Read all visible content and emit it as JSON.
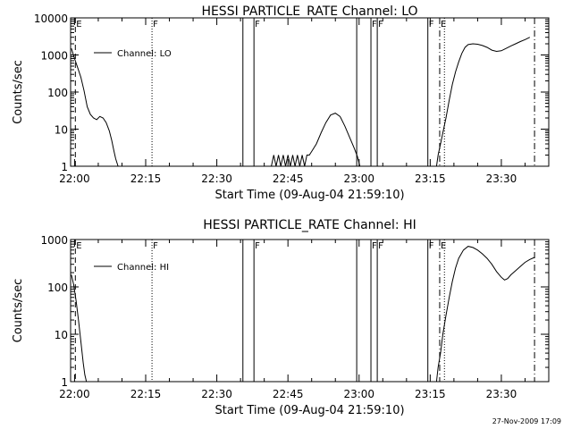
{
  "chart_data": [
    {
      "type": "line",
      "title": "HESSI PARTICLE_RATE Channel: LO",
      "xlabel": "Start Time (09-Aug-04 21:59:10)",
      "ylabel": "Counts/sec",
      "yscale": "log",
      "ylim": [
        1,
        10000
      ],
      "xlim": [
        "21:59:10",
        "23:40:00"
      ],
      "x_ticks": [
        "22:00",
        "22:15",
        "22:30",
        "22:45",
        "23:00",
        "23:15",
        "23:30"
      ],
      "y_ticks": [
        "1",
        "10",
        "100",
        "1000",
        "10000"
      ],
      "legend": {
        "placement": "top-left",
        "entries": [
          "Channel: LO"
        ]
      },
      "series": [
        {
          "name": "Channel: LO",
          "segments": [
            {
              "x": [
                "21:59:20",
                "22:00:00",
                "22:00:40",
                "22:01:20",
                "22:02:00",
                "22:02:40",
                "22:03:20",
                "22:04:00",
                "22:04:40",
                "22:05:20",
                "22:06:00",
                "22:06:40",
                "22:07:20",
                "22:07:50",
                "22:08:20",
                "22:08:40",
                "22:09:10"
              ],
              "y": [
                1500,
                800,
                450,
                250,
                110,
                40,
                25,
                20,
                18,
                22,
                20,
                15,
                9,
                5,
                2.5,
                1.6,
                1
              ]
            },
            {
              "x": [
                "22:41:30",
                "22:42:00",
                "22:42:30",
                "22:43:00",
                "22:43:30",
                "22:44:00",
                "22:44:30",
                "22:45:00",
                "22:45:30",
                "22:46:00",
                "22:46:30",
                "22:47:00",
                "22:47:30",
                "22:48:00",
                "22:48:30",
                "22:49:00",
                "22:49:30",
                "22:50:00",
                "22:51:00",
                "22:52:00",
                "22:53:00",
                "22:54:00",
                "22:55:00",
                "22:56:00",
                "22:57:00",
                "22:58:00",
                "22:59:00",
                "22:59:40",
                "23:00:10"
              ],
              "y": [
                1,
                2,
                1,
                2,
                1,
                2,
                1,
                2,
                1,
                2,
                1,
                2,
                1,
                2,
                1,
                2,
                2,
                2.5,
                4,
                8,
                15,
                24,
                27,
                22,
                12,
                6,
                3,
                1.8,
                1
              ]
            },
            {
              "x": [
                "23:16:20",
                "23:16:40",
                "23:17:10",
                "23:17:40",
                "23:18:20",
                "23:19:00",
                "23:19:40",
                "23:20:20",
                "23:21:00",
                "23:21:40",
                "23:22:20",
                "23:23:00",
                "23:24:00",
                "23:25:00",
                "23:26:00",
                "23:27:00",
                "23:28:00",
                "23:29:00",
                "23:30:00",
                "23:31:00",
                "23:32:00",
                "23:33:00",
                "23:34:00",
                "23:35:00",
                "23:36:00"
              ],
              "y": [
                1,
                2,
                4,
                8,
                20,
                60,
                160,
                350,
                650,
                1100,
                1600,
                1900,
                2000,
                1950,
                1800,
                1600,
                1350,
                1250,
                1300,
                1500,
                1750,
                2000,
                2300,
                2600,
                3000
              ]
            }
          ]
        }
      ],
      "annotations": [
        {
          "text": "E",
          "time": "22:00:10",
          "style": "dashed"
        },
        {
          "text": "F",
          "time": "22:16:20",
          "style": "dotted"
        },
        {
          "text": "",
          "time": "22:35:30",
          "style": "solid"
        },
        {
          "text": "F",
          "time": "22:37:50",
          "style": "solid"
        },
        {
          "text": "",
          "time": "22:59:30",
          "style": "solid"
        },
        {
          "text": "F",
          "time": "23:02:30",
          "style": "solid"
        },
        {
          "text": "F",
          "time": "23:03:50",
          "style": "solid"
        },
        {
          "text": "F",
          "time": "23:14:30",
          "style": "solid"
        },
        {
          "text": "E",
          "time": "23:17:00",
          "style": "dashdot"
        },
        {
          "text": "",
          "time": "23:18:00",
          "style": "dotted"
        },
        {
          "text": "",
          "time": "23:37:00",
          "style": "dashdot"
        }
      ]
    },
    {
      "type": "line",
      "title": "HESSI PARTICLE_RATE Channel: HI",
      "xlabel": "Start Time (09-Aug-04 21:59:10)",
      "ylabel": "Counts/sec",
      "yscale": "log",
      "ylim": [
        1,
        1000
      ],
      "xlim": [
        "21:59:10",
        "23:40:00"
      ],
      "x_ticks": [
        "22:00",
        "22:15",
        "22:30",
        "22:45",
        "23:00",
        "23:15",
        "23:30"
      ],
      "y_ticks": [
        "1",
        "10",
        "100",
        "1000"
      ],
      "legend": {
        "placement": "top-left",
        "entries": [
          "Channel: HI"
        ]
      },
      "series": [
        {
          "name": "Channel: HI",
          "segments": [
            {
              "x": [
                "21:59:20",
                "21:59:50",
                "22:00:20",
                "22:00:50",
                "22:01:20",
                "22:01:50",
                "22:02:10",
                "22:02:30"
              ],
              "y": [
                180,
                110,
                50,
                20,
                7,
                2.5,
                1.4,
                1
              ]
            },
            {
              "x": [
                "23:16:20",
                "23:16:40",
                "23:17:10",
                "23:17:40",
                "23:18:20",
                "23:19:00",
                "23:19:40",
                "23:20:20",
                "23:21:00",
                "23:22:00",
                "23:23:00",
                "23:24:00",
                "23:25:00",
                "23:26:00",
                "23:27:00",
                "23:28:00",
                "23:29:00",
                "23:30:00",
                "23:30:40",
                "23:31:20",
                "23:32:00",
                "23:33:00",
                "23:34:00",
                "23:35:00",
                "23:36:00",
                "23:37:00"
              ],
              "y": [
                1,
                2,
                4,
                10,
                25,
                60,
                130,
                250,
                400,
                600,
                720,
                680,
                600,
                500,
                400,
                300,
                210,
                160,
                140,
                150,
                180,
                220,
                270,
                330,
                380,
                420
              ]
            }
          ]
        }
      ],
      "annotations": [
        {
          "text": "E",
          "time": "22:00:10",
          "style": "dashed"
        },
        {
          "text": "F",
          "time": "22:16:20",
          "style": "dotted"
        },
        {
          "text": "",
          "time": "22:35:30",
          "style": "solid"
        },
        {
          "text": "F",
          "time": "22:37:50",
          "style": "solid"
        },
        {
          "text": "",
          "time": "22:59:30",
          "style": "solid"
        },
        {
          "text": "F",
          "time": "23:02:30",
          "style": "solid"
        },
        {
          "text": "F",
          "time": "23:03:50",
          "style": "solid"
        },
        {
          "text": "F",
          "time": "23:14:30",
          "style": "solid"
        },
        {
          "text": "E",
          "time": "23:17:00",
          "style": "dashdot"
        },
        {
          "text": "",
          "time": "23:18:00",
          "style": "dotted"
        },
        {
          "text": "",
          "time": "23:37:00",
          "style": "dashdot"
        }
      ]
    }
  ],
  "footer": {
    "timestamp": "27-Nov-2009 17:09"
  }
}
